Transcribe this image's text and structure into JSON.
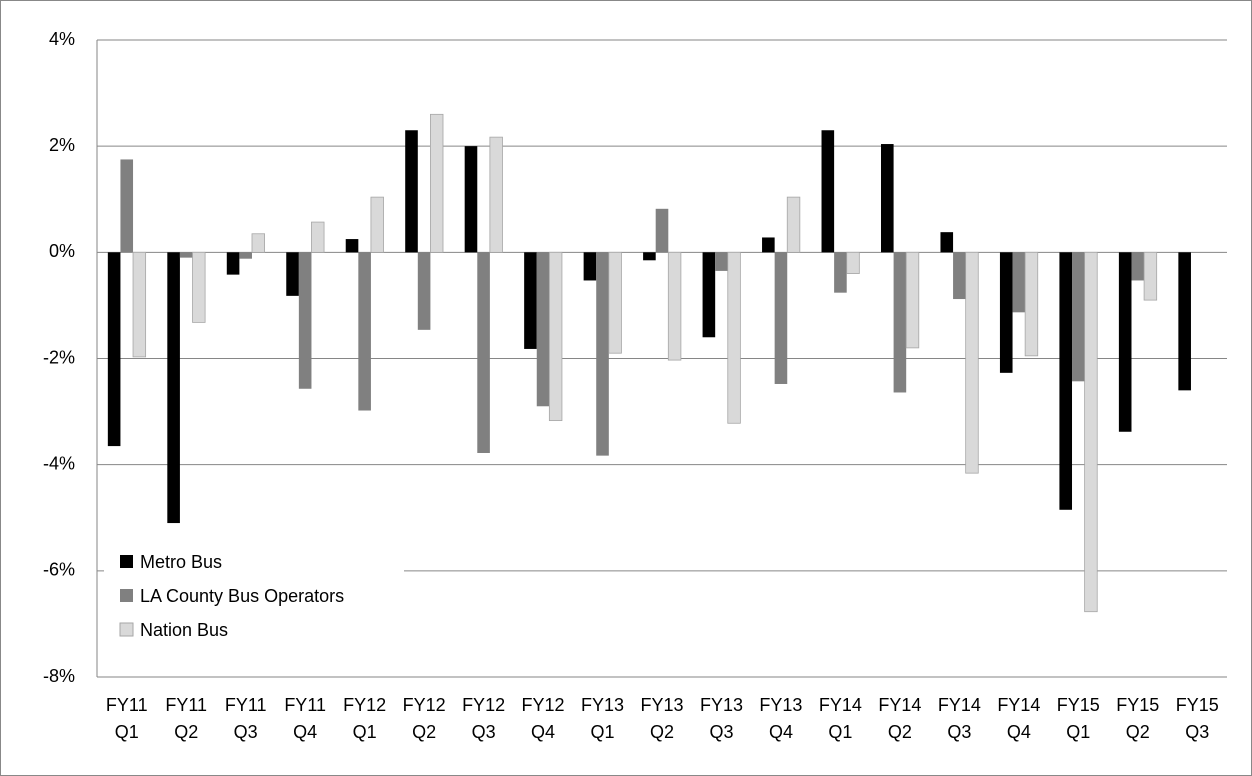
{
  "chart_data": {
    "type": "bar",
    "categories": [
      [
        "FY11",
        "Q1"
      ],
      [
        "FY11",
        "Q2"
      ],
      [
        "FY11",
        "Q3"
      ],
      [
        "FY11",
        "Q4"
      ],
      [
        "FY12",
        "Q1"
      ],
      [
        "FY12",
        "Q2"
      ],
      [
        "FY12",
        "Q3"
      ],
      [
        "FY12",
        "Q4"
      ],
      [
        "FY13",
        "Q1"
      ],
      [
        "FY13",
        "Q2"
      ],
      [
        "FY13",
        "Q3"
      ],
      [
        "FY13",
        "Q4"
      ],
      [
        "FY14",
        "Q1"
      ],
      [
        "FY14",
        "Q2"
      ],
      [
        "FY14",
        "Q3"
      ],
      [
        "FY14",
        "Q4"
      ],
      [
        "FY15",
        "Q1"
      ],
      [
        "FY15",
        "Q2"
      ],
      [
        "FY15",
        "Q3"
      ]
    ],
    "series": [
      {
        "name": "Metro Bus",
        "color": "#000000",
        "values": [
          -3.65,
          -5.1,
          -0.42,
          -0.82,
          0.25,
          2.3,
          2.0,
          -1.82,
          -0.53,
          -0.15,
          -1.6,
          0.28,
          2.3,
          2.04,
          0.38,
          -2.27,
          -4.85,
          -3.38,
          -2.6
        ]
      },
      {
        "name": "LA County Bus Operators",
        "color": "#808080",
        "values": [
          1.75,
          -0.1,
          -0.12,
          -2.57,
          -2.98,
          -1.46,
          -3.78,
          -2.9,
          -3.83,
          0.82,
          -0.35,
          -2.48,
          -0.76,
          -2.64,
          -0.88,
          -1.13,
          -2.43,
          -0.53,
          null
        ]
      },
      {
        "name": "Nation Bus",
        "color": "#d9d9d9",
        "values": [
          -1.97,
          -1.32,
          0.35,
          0.57,
          1.04,
          2.6,
          2.17,
          -3.17,
          -1.9,
          -2.03,
          -3.22,
          1.04,
          -0.4,
          -1.8,
          -4.16,
          -1.95,
          -6.77,
          -0.9,
          null
        ]
      }
    ],
    "ylim": [
      -8,
      4
    ],
    "yticks": [
      {
        "value": -8,
        "label": "-8%"
      },
      {
        "value": -6,
        "label": "-6%"
      },
      {
        "value": -4,
        "label": "-4%"
      },
      {
        "value": -2,
        "label": "-2%"
      },
      {
        "value": 0,
        "label": "0%"
      },
      {
        "value": 2,
        "label": "2%"
      },
      {
        "value": 4,
        "label": "4%"
      }
    ],
    "grid": true,
    "legend": "lower left"
  }
}
